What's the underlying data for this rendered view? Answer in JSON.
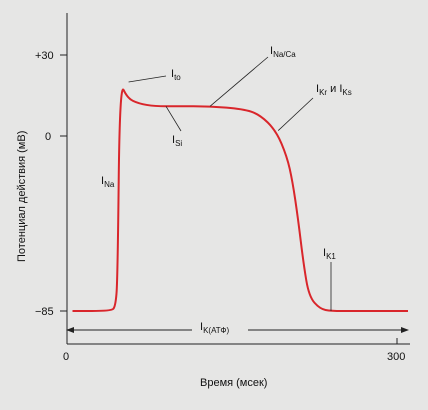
{
  "chart_data": {
    "type": "line",
    "xlabel": "Время (мсек)",
    "ylabel": "Потенциал действия (мВ)",
    "xlim": [
      0,
      300
    ],
    "ylim": [
      -85,
      30
    ],
    "x_ticks": [
      "0",
      "300"
    ],
    "y_ticks": [
      "+30",
      "0",
      "−85"
    ],
    "x_tick_values": [
      0,
      300
    ],
    "y_tick_values": [
      30,
      0,
      -85
    ],
    "line_color": "#d9262b",
    "series": [
      {
        "x": [
          5,
          40,
          44,
          46,
          48,
          55,
          65,
          80,
          100,
          130,
          160,
          175,
          190,
          200,
          205,
          210,
          215,
          220,
          230,
          240,
          260,
          290,
          310
        ],
        "y": [
          -85,
          -85,
          -83,
          -70,
          20,
          14,
          12,
          11,
          11,
          11,
          10,
          8,
          2,
          -10,
          -22,
          -40,
          -62,
          -78,
          -84,
          -85,
          -85,
          -85,
          -85
        ]
      }
    ],
    "annotations": {
      "ito": {
        "main": "I",
        "sub": "to",
        "x": 56,
        "y": 20
      },
      "ina_ca": {
        "main": "I",
        "sub": "Na/Ca",
        "x": 130,
        "y": 11
      },
      "ikr_iks": {
        "main": "I",
        "sub1": "Kr",
        "mid": " и I",
        "sub2": "Ks",
        "x": 192,
        "y": 2
      },
      "isi": {
        "main": "I",
        "sub": "Si",
        "x": 90,
        "y": 11
      },
      "ina": {
        "main": "I",
        "sub": "Na"
      },
      "ik1": {
        "main": "I",
        "sub": "K1",
        "x": 240,
        "y": -85
      },
      "ikatp": {
        "main": "I",
        "sub": "K(АТФ)"
      }
    }
  }
}
